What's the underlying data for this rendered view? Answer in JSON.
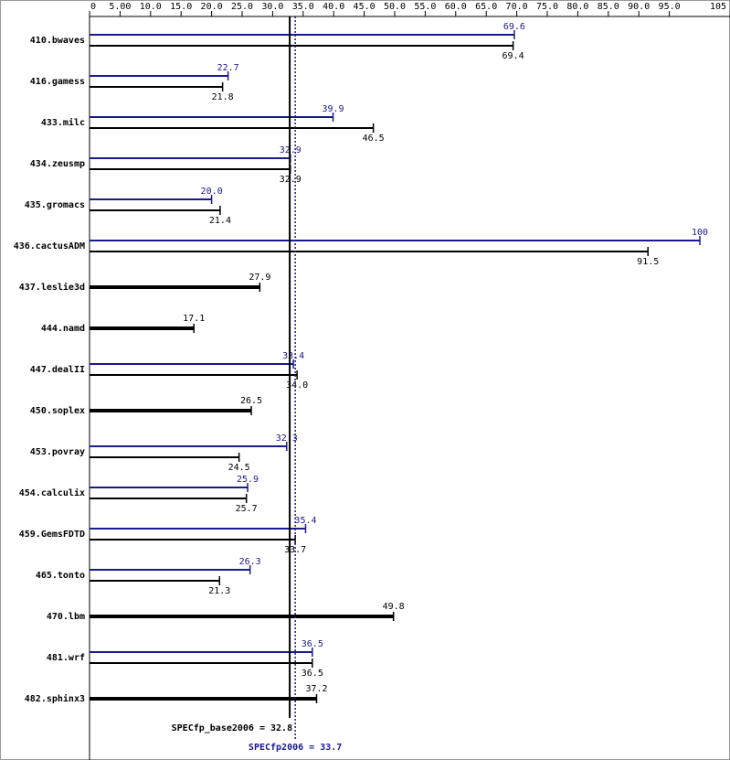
{
  "chart_data": {
    "type": "bar",
    "orientation": "horizontal",
    "categories": [
      "410.bwaves",
      "416.gamess",
      "433.milc",
      "434.zeusmp",
      "435.gromacs",
      "436.cactusADM",
      "437.leslie3d",
      "444.namd",
      "447.dealII",
      "450.soplex",
      "453.povray",
      "454.calculix",
      "459.GemsFDTD",
      "465.tonto",
      "470.lbm",
      "481.wrf",
      "482.sphinx3"
    ],
    "series": [
      {
        "color": "#1a1a8c",
        "values": [
          69.6,
          22.7,
          39.9,
          32.9,
          20.0,
          100,
          null,
          null,
          33.4,
          null,
          32.3,
          25.9,
          35.4,
          26.3,
          null,
          36.5,
          null
        ],
        "value_labels": [
          "69.6",
          "22.7",
          "39.9",
          "32.9",
          "20.0",
          "100",
          null,
          null,
          "33.4",
          null,
          "32.3",
          "25.9",
          "35.4",
          "26.3",
          null,
          "36.5",
          null
        ]
      },
      {
        "color": "#000000",
        "values": [
          69.4,
          21.8,
          46.5,
          32.9,
          21.4,
          91.5,
          27.9,
          17.1,
          34.0,
          26.5,
          24.5,
          25.7,
          33.7,
          21.3,
          49.8,
          36.5,
          37.2
        ],
        "value_labels": [
          "69.4",
          "21.8",
          "46.5",
          "32.9",
          "21.4",
          "91.5",
          "27.9",
          "17.1",
          "34.0",
          "26.5",
          "24.5",
          "25.7",
          "33.7",
          "21.3",
          "49.8",
          "36.5",
          "37.2"
        ]
      }
    ],
    "xlim": [
      0,
      105
    ],
    "xticks": [
      0,
      {
        "value": 5,
        "label": "5.00"
      },
      {
        "value": 10,
        "label": "10.0"
      },
      {
        "value": 15,
        "label": "15.0"
      },
      {
        "value": 20,
        "label": "20.0"
      },
      {
        "value": 25,
        "label": "25.0"
      },
      {
        "value": 30,
        "label": "30.0"
      },
      {
        "value": 35,
        "label": "35.0"
      },
      {
        "value": 40,
        "label": "40.0"
      },
      {
        "value": 45,
        "label": "45.0"
      },
      {
        "value": 50,
        "label": "50.0"
      },
      {
        "value": 55,
        "label": "55.0"
      },
      {
        "value": 60,
        "label": "60.0"
      },
      {
        "value": 65,
        "label": "65.0"
      },
      {
        "value": 70,
        "label": "70.0"
      },
      {
        "value": 75,
        "label": "75.0"
      },
      {
        "value": 80,
        "label": "80.0"
      },
      {
        "value": 85,
        "label": "85.0"
      },
      {
        "value": 90,
        "label": "90.0"
      },
      {
        "value": 95,
        "label": "95.0"
      },
      105
    ],
    "reference_lines": [
      {
        "label": "SPECfp_base2006 = 32.8",
        "value": 32.8,
        "color": "#000000",
        "style": "solid"
      },
      {
        "label": "SPECfp2006 = 33.7",
        "value": 33.7,
        "color": "#1a1a8c",
        "style": "dotted"
      }
    ]
  }
}
